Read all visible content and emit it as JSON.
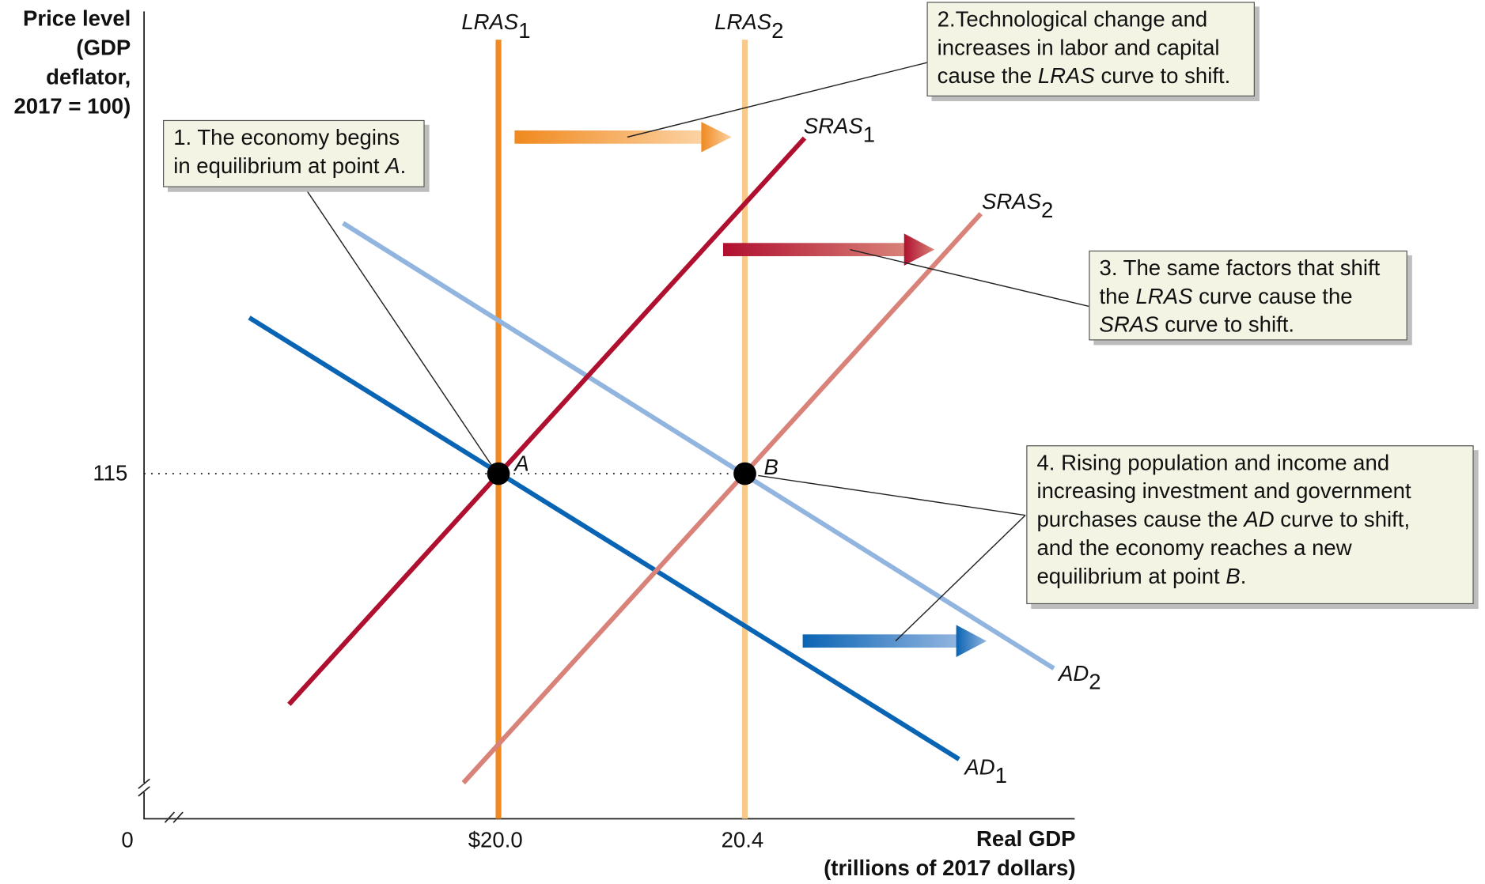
{
  "chart_data": {
    "type": "line",
    "ylabel_lines": [
      "Price level",
      "(GDP",
      "deflator,",
      "2017 = 100)"
    ],
    "xlabel_lines": [
      "Real GDP",
      "(trillions of 2017 dollars)"
    ],
    "origin_label": "0",
    "x_ticks": [
      "$20.0",
      "20.4"
    ],
    "y_ticks": [
      "115"
    ],
    "curves": {
      "lras1": {
        "name": "LRAS",
        "sub": "1",
        "color": "#f0891f"
      },
      "lras2": {
        "name": "LRAS",
        "sub": "2",
        "color": "#f9c98c"
      },
      "sras1": {
        "name": "SRAS",
        "sub": "1",
        "color": "#b0102f"
      },
      "sras2": {
        "name": "SRAS",
        "sub": "2",
        "color": "#d98279"
      },
      "ad1": {
        "name": "AD",
        "sub": "1",
        "color": "#0a64b4"
      },
      "ad2": {
        "name": "AD",
        "sub": "2",
        "color": "#92b5e0"
      }
    },
    "points": {
      "a": {
        "label": "A",
        "x": "$20.0",
        "y": "115"
      },
      "b": {
        "label": "B",
        "x": "20.4",
        "y": "115"
      }
    }
  },
  "callouts": {
    "c1": {
      "lines": [
        [
          {
            "t": "1. The economy begins"
          }
        ],
        [
          {
            "t": "in equilibrium at point "
          },
          {
            "t": "A",
            "i": true
          },
          {
            "t": "."
          }
        ]
      ]
    },
    "c2": {
      "lines": [
        [
          {
            "t": "2.Technological change and"
          }
        ],
        [
          {
            "t": "increases in labor and capital"
          }
        ],
        [
          {
            "t": "cause the "
          },
          {
            "t": "LRAS",
            "i": true
          },
          {
            "t": " curve to shift."
          }
        ]
      ]
    },
    "c3": {
      "lines": [
        [
          {
            "t": "3. The same factors that shift"
          }
        ],
        [
          {
            "t": "the "
          },
          {
            "t": "LRAS",
            "i": true
          },
          {
            "t": " curve cause the"
          }
        ],
        [
          {
            "t": "SRAS",
            "i": true
          },
          {
            "t": " curve to shift."
          }
        ]
      ]
    },
    "c4": {
      "lines": [
        [
          {
            "t": "4. Rising population and income and"
          }
        ],
        [
          {
            "t": "increasing investment and government"
          }
        ],
        [
          {
            "t": "purchases cause the "
          },
          {
            "t": "AD",
            "i": true
          },
          {
            "t": " curve to shift,"
          }
        ],
        [
          {
            "t": "and the economy reaches a new"
          }
        ],
        [
          {
            "t": "equilibrium at point "
          },
          {
            "t": "B",
            "i": true
          },
          {
            "t": "."
          }
        ]
      ]
    }
  }
}
